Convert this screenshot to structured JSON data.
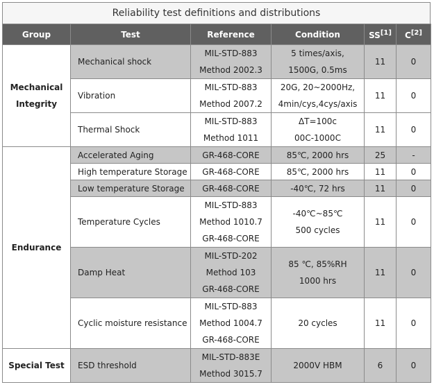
{
  "title": "Reliability test definitions and distributions",
  "columns": {
    "group": "Group",
    "test": "Test",
    "reference": "Reference",
    "condition": "Condition",
    "ss": "SS",
    "ss_note": "[1]",
    "c": "C",
    "c_note": "[2]"
  },
  "groups": [
    {
      "name_line1": "Mechanical",
      "name_line2": "Integrity"
    },
    {
      "name_line1": "Endurance"
    },
    {
      "name_line1": "Special Test"
    }
  ],
  "rows": [
    {
      "test": "Mechanical shock",
      "ref": [
        "MIL-STD-883",
        "Method 2002.3"
      ],
      "cond": [
        "5 times/axis,",
        "1500G, 0.5ms"
      ],
      "ss": "11",
      "c": "0"
    },
    {
      "test": "Vibration",
      "ref": [
        "MIL-STD-883",
        "Method 2007.2"
      ],
      "cond": [
        "20G, 20~2000Hz,",
        "4min/cys,4cys/axis"
      ],
      "ss": "11",
      "c": "0"
    },
    {
      "test": "Thermal Shock",
      "ref": [
        "MIL-STD-883",
        "Method 1011"
      ],
      "cond": [
        "ΔT=100c",
        "00C-1000C"
      ],
      "ss": "11",
      "c": "0"
    },
    {
      "test": "Accelerated Aging",
      "ref": [
        "GR-468-CORE"
      ],
      "cond": [
        "85℃, 2000 hrs"
      ],
      "ss": "25",
      "c": "-"
    },
    {
      "test": "High temperature Storage",
      "ref": [
        "GR-468-CORE"
      ],
      "cond": [
        "85℃, 2000 hrs"
      ],
      "ss": "11",
      "c": "0"
    },
    {
      "test": "Low temperature Storage",
      "ref": [
        "GR-468-CORE"
      ],
      "cond": [
        "-40℃, 72 hrs"
      ],
      "ss": "11",
      "c": "0"
    },
    {
      "test": "Temperature Cycles",
      "ref": [
        "MIL-STD-883",
        "Method 1010.7",
        "GR-468-CORE"
      ],
      "cond": [
        "-40℃~85℃",
        "500 cycles"
      ],
      "ss": "11",
      "c": "0"
    },
    {
      "test": "Damp Heat",
      "ref": [
        "MIL-STD-202",
        "Method 103",
        "GR-468-CORE"
      ],
      "cond": [
        "85 ℃, 85%RH",
        "1000 hrs"
      ],
      "ss": "11",
      "c": "0"
    },
    {
      "test": "Cyclic moisture resistance",
      "ref": [
        "MIL-STD-883",
        "Method 1004.7",
        "GR-468-CORE"
      ],
      "cond": [
        "20 cycles"
      ],
      "ss": "11",
      "c": "0"
    },
    {
      "test": "ESD threshold",
      "ref": [
        "MIL-STD-883E",
        "Method 3015.7"
      ],
      "cond": [
        "2000V HBM"
      ],
      "ss": "6",
      "c": "0"
    }
  ]
}
